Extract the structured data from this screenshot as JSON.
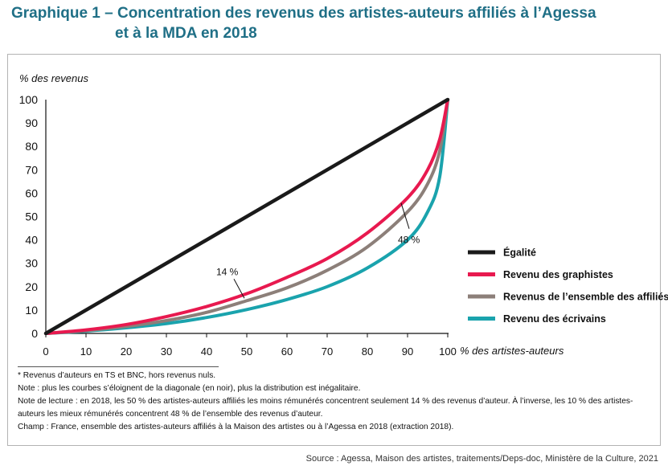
{
  "title": {
    "line1": "Graphique 1 – Concentration des revenus des artistes-auteurs affiliés à l’Agessa",
    "line2": "et à la MDA en 2018"
  },
  "chart_data": {
    "type": "line",
    "ylabel": "% des revenus",
    "xlabel": "% des artistes-auteurs",
    "xlim": [
      0,
      100
    ],
    "ylim": [
      0,
      100
    ],
    "x_ticks": [
      "0",
      "10",
      "20",
      "30",
      "40",
      "50",
      "60",
      "70",
      "80",
      "90",
      "100"
    ],
    "y_ticks": [
      "0",
      "10",
      "20",
      "30",
      "40",
      "50",
      "60",
      "70",
      "80",
      "90",
      "100"
    ],
    "grid": false,
    "legend_position": "right",
    "series": [
      {
        "name": "Égalité",
        "color": "#1a1a1a",
        "points": [
          [
            0,
            0
          ],
          [
            100,
            100
          ]
        ]
      },
      {
        "name": "Revenu des graphistes",
        "color": "#e8194f",
        "points": [
          [
            0,
            0
          ],
          [
            10,
            1.5
          ],
          [
            20,
            3.8
          ],
          [
            30,
            7.2
          ],
          [
            40,
            11.5
          ],
          [
            50,
            17
          ],
          [
            60,
            24
          ],
          [
            70,
            32
          ],
          [
            80,
            43
          ],
          [
            90,
            58
          ],
          [
            95,
            70
          ],
          [
            98,
            83
          ],
          [
            100,
            100
          ]
        ]
      },
      {
        "name": "Revenus de l’ensemble des affiliés",
        "color": "#8c7f79",
        "points": [
          [
            0,
            0
          ],
          [
            10,
            1.2
          ],
          [
            20,
            3
          ],
          [
            30,
            5.5
          ],
          [
            40,
            9
          ],
          [
            50,
            14
          ],
          [
            60,
            19.5
          ],
          [
            70,
            27
          ],
          [
            80,
            37
          ],
          [
            90,
            52
          ],
          [
            95,
            64
          ],
          [
            98,
            78
          ],
          [
            100,
            100
          ]
        ]
      },
      {
        "name": "Revenu des écrivains",
        "color": "#1aa3ad",
        "points": [
          [
            0,
            0
          ],
          [
            10,
            1
          ],
          [
            20,
            2.4
          ],
          [
            30,
            4.2
          ],
          [
            40,
            6.8
          ],
          [
            50,
            10.2
          ],
          [
            60,
            14.5
          ],
          [
            70,
            20
          ],
          [
            80,
            28
          ],
          [
            90,
            40
          ],
          [
            95,
            52
          ],
          [
            98,
            67
          ],
          [
            100,
            100
          ]
        ]
      }
    ],
    "annotations": [
      {
        "text": "14 %",
        "x": 50,
        "y": 14
      },
      {
        "text": "48 %",
        "x": 90,
        "y": 52
      }
    ]
  },
  "notes": {
    "footnote": "* Revenus d’auteurs en TS et BNC, hors revenus nuls.",
    "note": "Note : plus les courbes s’éloignent de la diagonale (en noir), plus la distribution est inégalitaire.",
    "reading_1": "Note de lecture : en 2018, les 50 % des artistes-auteurs affiliés les moins rémunérés concentrent seulement 14 % des revenus d’auteur. À l’inverse, les 10 % des artistes-",
    "reading_2": "auteurs les mieux rémunérés concentrent 48 % de l’ensemble des revenus d’auteur.",
    "scope": "Champ : France, ensemble des artistes-auteurs affiliés à la Maison des artistes ou à l’Agessa en 2018 (extraction 2018)."
  },
  "source": "Source : Agessa, Maison des artistes, traitements/Deps-doc, Ministère de la Culture, 2021"
}
